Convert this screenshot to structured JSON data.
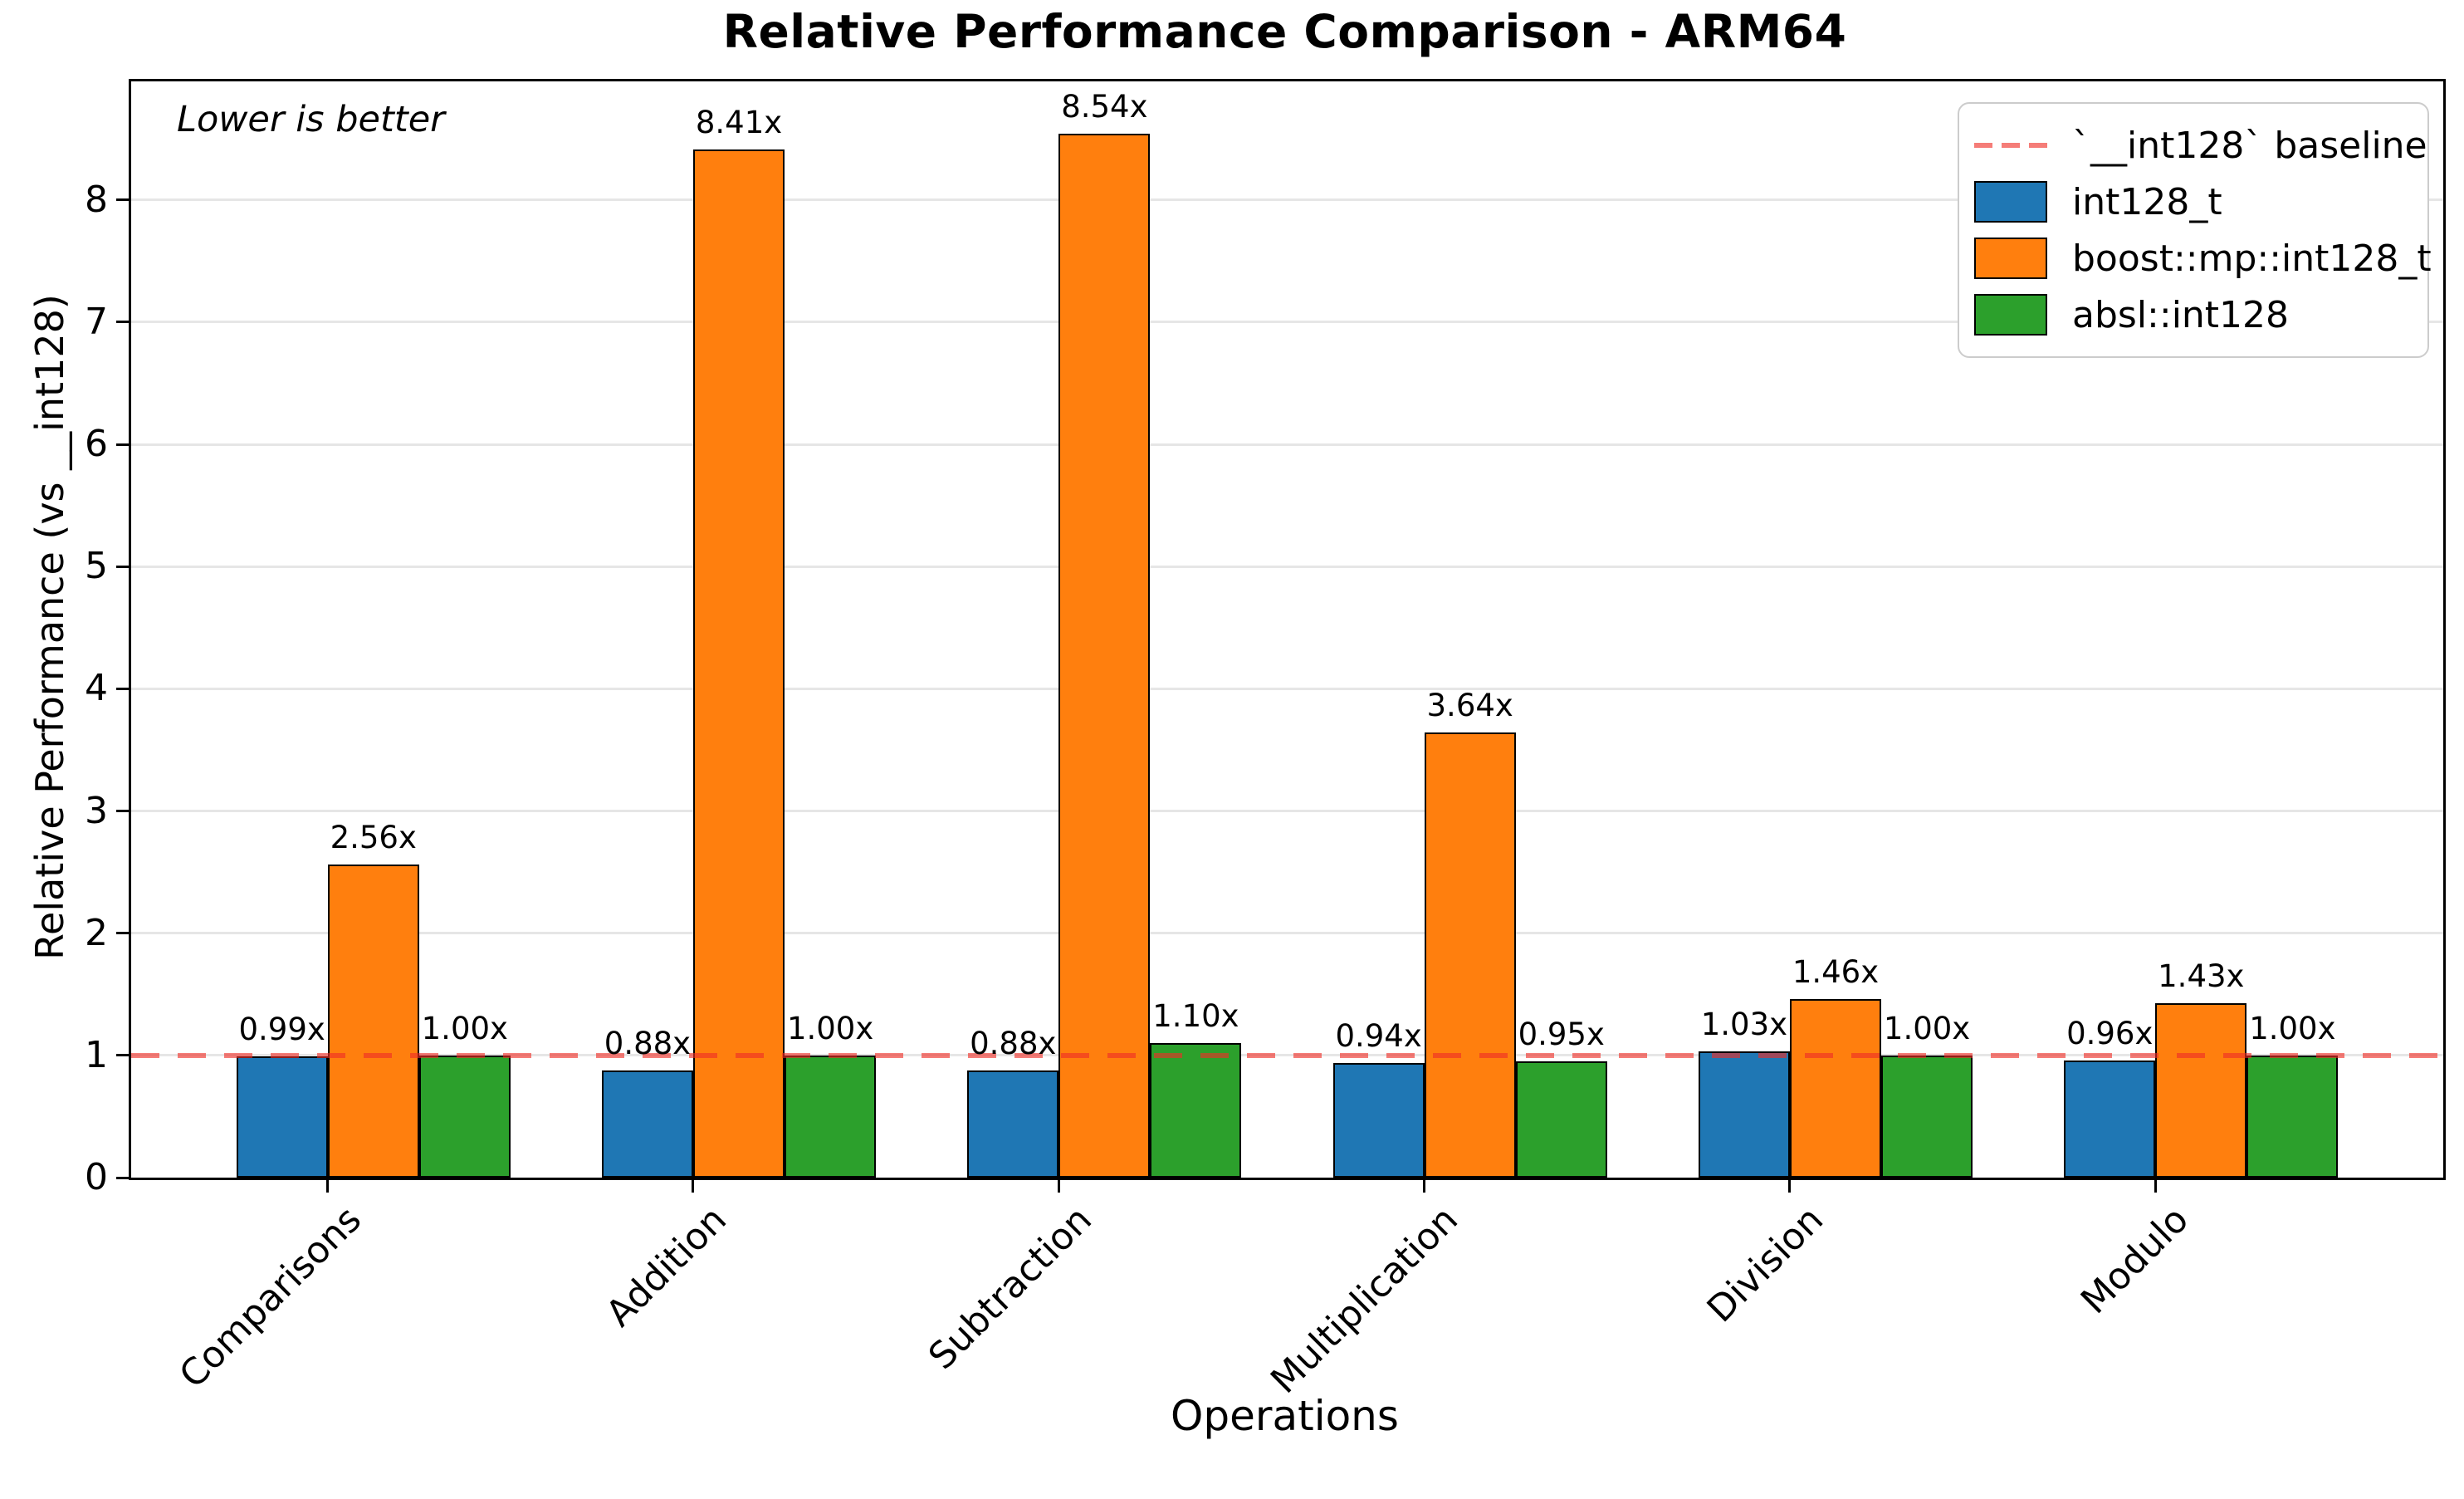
{
  "chart_data": {
    "type": "bar",
    "title": "Relative Performance Comparison - ARM64",
    "xlabel": "Operations",
    "ylabel": "Relative Performance (vs __int128)",
    "annotation": "Lower is better",
    "categories": [
      "Comparisons",
      "Addition",
      "Subtraction",
      "Multiplication",
      "Division",
      "Modulo"
    ],
    "series": [
      {
        "name": "int128_t",
        "color": "#1f77b4",
        "values": [
          0.99,
          0.88,
          0.88,
          0.94,
          1.03,
          0.96
        ],
        "labels": [
          "0.99x",
          "0.88x",
          "0.88x",
          "0.94x",
          "1.03x",
          "0.96x"
        ]
      },
      {
        "name": "boost::mp::int128_t",
        "color": "#ff7f0e",
        "values": [
          2.56,
          8.41,
          8.54,
          3.64,
          1.46,
          1.43
        ],
        "labels": [
          "2.56x",
          "8.41x",
          "8.54x",
          "3.64x",
          "1.46x",
          "1.43x"
        ]
      },
      {
        "name": "absl::int128",
        "color": "#2ca02c",
        "values": [
          1.0,
          1.0,
          1.1,
          0.95,
          1.0,
          1.0
        ],
        "labels": [
          "1.00x",
          "1.00x",
          "1.10x",
          "0.95x",
          "1.00x",
          "1.00x"
        ]
      }
    ],
    "baseline": {
      "value": 1.0,
      "label": "`__int128` baseline",
      "color_rgba": "rgba(239,45,38,0.62)"
    },
    "y_ticks": [
      "0",
      "1",
      "2",
      "3",
      "4",
      "5",
      "6",
      "7",
      "8"
    ],
    "ylim": [
      0,
      8.97
    ],
    "xlim": [
      -0.5375,
      5.7875
    ],
    "bar_width": 0.25,
    "grid": "horizontal",
    "legend_position": "upper right"
  }
}
